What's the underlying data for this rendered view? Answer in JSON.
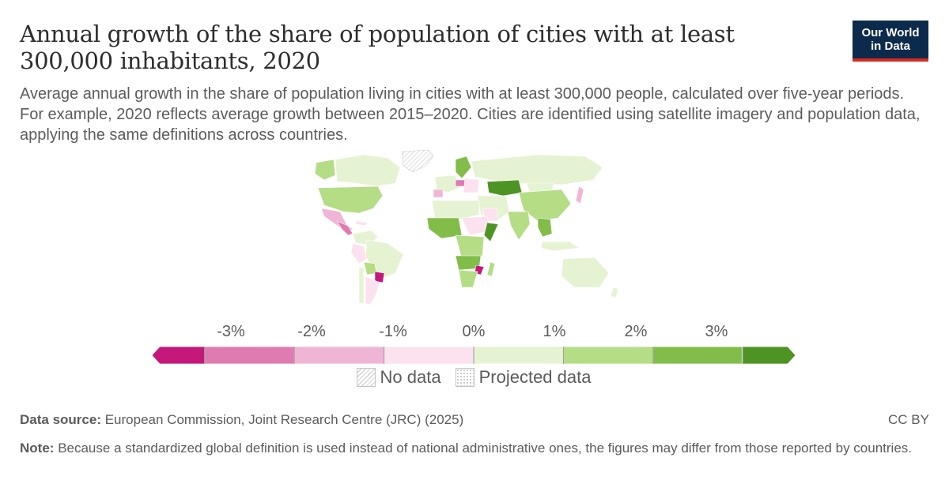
{
  "header": {
    "title": "Annual growth of the share of population of cities with at least 300,000 inhabitants, 2020",
    "subtitle": "Average annual growth in the share of population living in cities with at least 300,000 people, calculated over five-year periods. For example, 2020 reflects average growth between 2015–2020. Cities are identified using satellite imagery and population data, applying the same definitions across countries.",
    "logo_line1": "Our World",
    "logo_line2": "in Data"
  },
  "legend": {
    "ticks": [
      "-3%",
      "-2%",
      "-1%",
      "0%",
      "1%",
      "2%",
      "3%"
    ],
    "bins": [
      {
        "color": "#c4187a"
      },
      {
        "color": "#df7bb1"
      },
      {
        "color": "#f0b5d5"
      },
      {
        "color": "#fce1ee"
      },
      {
        "color": "#e6f3d3"
      },
      {
        "color": "#b5dd86"
      },
      {
        "color": "#82bd4a"
      },
      {
        "color": "#4e9424"
      }
    ],
    "no_data_label": "No data",
    "projected_label": "Projected data"
  },
  "map": {
    "regions": [
      {
        "name": "Greenland",
        "color": "no-data"
      },
      {
        "name": "Canada",
        "color": "#e6f3d3"
      },
      {
        "name": "United States",
        "color": "#b5dd86"
      },
      {
        "name": "Mexico",
        "color": "#f0b5d5"
      },
      {
        "name": "Brazil",
        "color": "#e6f3d3"
      },
      {
        "name": "Paraguay",
        "color": "#c4187a"
      },
      {
        "name": "Argentina",
        "color": "#fce1ee"
      },
      {
        "name": "Russia",
        "color": "#e6f3d3"
      },
      {
        "name": "Kazakhstan",
        "color": "#4e9424"
      },
      {
        "name": "China",
        "color": "#b5dd86"
      },
      {
        "name": "India",
        "color": "#b5dd86"
      },
      {
        "name": "Africa",
        "color": "#82bd4a"
      },
      {
        "name": "Australia",
        "color": "#e6f3d3"
      }
    ]
  },
  "footer": {
    "source_label": "Data source:",
    "source_text": "European Commission, Joint Research Centre (JRC) (2025)",
    "license": "CC BY",
    "note_label": "Note:",
    "note_text": "Because a standardized global definition is used instead of national administrative ones, the figures may differ from those reported by countries."
  }
}
